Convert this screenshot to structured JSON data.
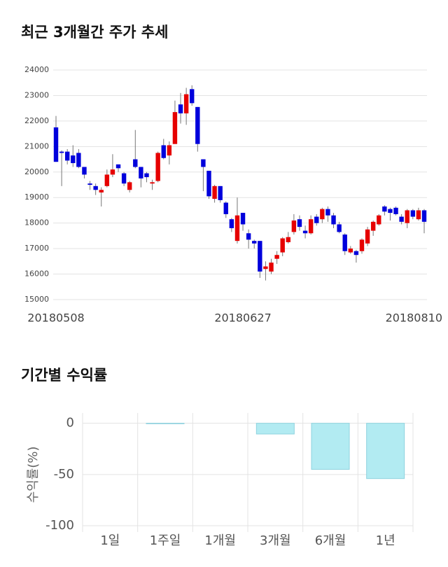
{
  "chart_data": [
    {
      "type": "candlestick",
      "title": "최근 3개월간 주가 추세",
      "categories": [
        "20180508",
        null,
        null,
        null,
        null,
        null,
        null,
        null,
        null,
        null,
        null,
        null,
        null,
        null,
        null,
        null,
        null,
        null,
        null,
        null,
        null,
        null,
        null,
        null,
        null,
        null,
        null,
        null,
        null,
        null,
        null,
        null,
        null,
        "20180627",
        null,
        null,
        null,
        null,
        null,
        null,
        null,
        null,
        null,
        null,
        null,
        null,
        null,
        null,
        null,
        null,
        null,
        null,
        null,
        null,
        null,
        null,
        null,
        null,
        null,
        null,
        null,
        null,
        null,
        null,
        null,
        "20180810"
      ],
      "open": [
        21750,
        20800,
        20800,
        20650,
        20750,
        20200,
        19550,
        19450,
        19200,
        19450,
        19900,
        20300,
        19950,
        19300,
        20500,
        20200,
        19950,
        19550,
        19650,
        21050,
        20650,
        21100,
        22650,
        22300,
        23250,
        22550,
        20500,
        20050,
        18950,
        19450,
        18800,
        18150,
        17300,
        18400,
        17600,
        17300,
        17300,
        16200,
        16100,
        16600,
        16850,
        17250,
        17650,
        18150,
        17700,
        17600,
        18250,
        18150,
        18550,
        18300,
        17950,
        17550,
        16850,
        16900,
        16900,
        17200,
        17700,
        17950,
        18650,
        18550,
        18600,
        18250,
        18000,
        18500,
        18150,
        18500
      ],
      "high": [
        22200,
        20850,
        20900,
        21050,
        20900,
        20200,
        19650,
        19550,
        19400,
        20100,
        20700,
        20300,
        20000,
        19650,
        21650,
        20200,
        20000,
        19700,
        20800,
        21300,
        21200,
        22800,
        23100,
        23300,
        23400,
        22550,
        20500,
        20050,
        19500,
        19450,
        18850,
        18200,
        19000,
        18400,
        17750,
        17350,
        17300,
        16500,
        16600,
        16900,
        17450,
        17650,
        18350,
        18300,
        17900,
        18300,
        18350,
        18600,
        18650,
        18400,
        18050,
        17600,
        17100,
        16950,
        17400,
        17850,
        18100,
        18350,
        18700,
        18600,
        18650,
        18350,
        18550,
        18550,
        18600,
        18550
      ],
      "low": [
        20400,
        19450,
        20300,
        20200,
        20150,
        19750,
        19300,
        19100,
        18650,
        19400,
        19800,
        20000,
        19450,
        19200,
        20150,
        19400,
        19600,
        19300,
        19600,
        20500,
        20300,
        21100,
        21900,
        21850,
        22600,
        20800,
        19250,
        18950,
        18800,
        18800,
        18200,
        17650,
        17200,
        17700,
        17000,
        17000,
        15850,
        15750,
        16000,
        16400,
        16700,
        17200,
        17550,
        17700,
        17400,
        17550,
        17900,
        18000,
        18050,
        17800,
        17600,
        16750,
        16800,
        16450,
        16800,
        17100,
        17500,
        17900,
        18300,
        18100,
        18300,
        17950,
        17800,
        18150,
        18100,
        17600
      ],
      "close": [
        20400,
        20750,
        20450,
        20350,
        20200,
        19900,
        19500,
        19300,
        19300,
        19900,
        20100,
        20150,
        19550,
        19600,
        20200,
        19750,
        19800,
        19600,
        20750,
        20550,
        21050,
        22350,
        22300,
        23050,
        22700,
        21100,
        20200,
        19050,
        19450,
        18900,
        18350,
        17800,
        18300,
        17950,
        17350,
        17200,
        16100,
        16300,
        16450,
        16750,
        17400,
        17450,
        18100,
        17850,
        17600,
        18150,
        18000,
        18550,
        18300,
        17950,
        17650,
        16900,
        17000,
        16750,
        17350,
        17750,
        18050,
        18300,
        18450,
        18400,
        18350,
        18050,
        18500,
        18250,
        18500,
        18050
      ],
      "up_color": "#e60000",
      "down_color": "#0000dc",
      "ylim": [
        15000,
        24000
      ],
      "yticks": [
        15000,
        16000,
        17000,
        18000,
        19000,
        20000,
        21000,
        22000,
        23000,
        24000
      ],
      "grid": true
    },
    {
      "type": "bar",
      "title": "기간별 수익률",
      "y_label": "수익률(%)",
      "categories": [
        "1일",
        "1주일",
        "1개월",
        "3개월",
        "6개월",
        "1년"
      ],
      "values": [
        0,
        -0.5,
        0,
        -10.5,
        -45,
        -54
      ],
      "color": "#b2ebf2",
      "ylim": [
        -100,
        10
      ],
      "yticks": [
        -100,
        -50,
        0
      ],
      "grid": true
    }
  ]
}
